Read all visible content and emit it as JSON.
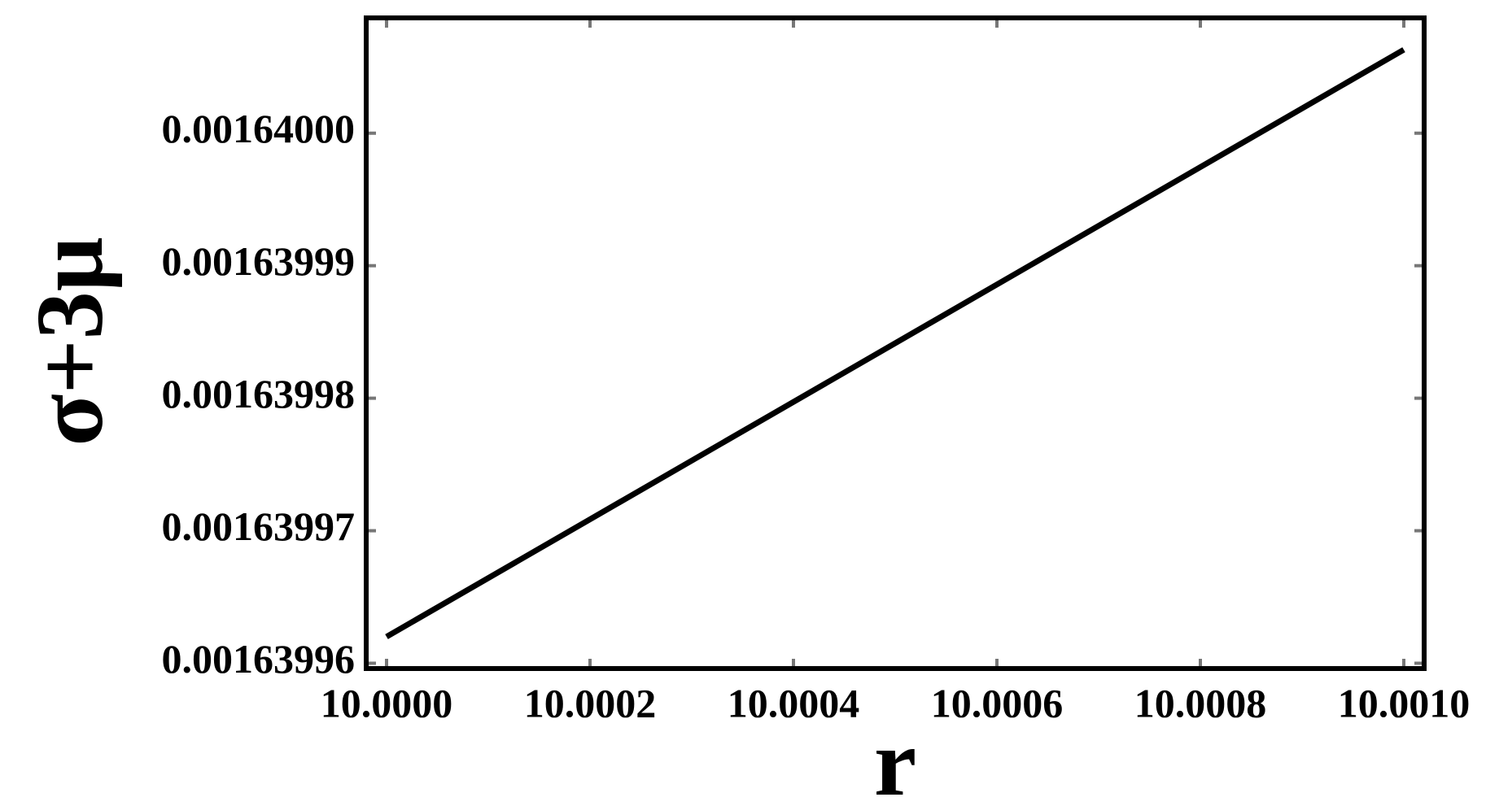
{
  "chart_data": {
    "type": "line",
    "x_label": "r",
    "y_label": "σ+3μ",
    "x": [
      10.0,
      10.001
    ],
    "series": [
      {
        "color": "#000000",
        "values": [
          0.001639962,
          0.0016400063
        ]
      }
    ],
    "xlim": [
      9.99998,
      10.00102
    ],
    "ylim": [
      0.0016399596,
      0.0016400087
    ],
    "xticks": [
      {
        "value": 10.0,
        "label": "10.0000"
      },
      {
        "value": 10.0002,
        "label": "10.0002"
      },
      {
        "value": 10.0004,
        "label": "10.0004"
      },
      {
        "value": 10.0006,
        "label": "10.0006"
      },
      {
        "value": 10.0008,
        "label": "10.0008"
      },
      {
        "value": 10.001,
        "label": "10.0010"
      }
    ],
    "yticks": [
      0.00163996,
      0.00163997,
      0.00163998,
      0.00163999,
      {
        "value": 0.00164,
        "label": "0.00164000"
      }
    ]
  }
}
